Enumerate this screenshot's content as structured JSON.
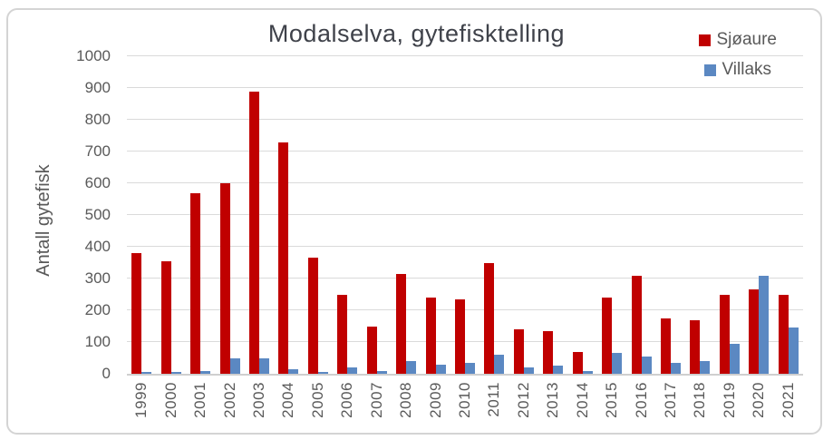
{
  "chart_data": {
    "type": "bar",
    "title": "Modalselva, gytefisktelling",
    "ylabel": "Antall gytefisk",
    "xlabel": "",
    "ylim": [
      0,
      1000
    ],
    "ytick_step": 100,
    "grid": true,
    "legend_position": "top-right",
    "categories": [
      "1999",
      "2000",
      "2001",
      "2002",
      "2003",
      "2004",
      "2005",
      "2006",
      "2007",
      "2008",
      "2009",
      "2010",
      "2011",
      "2012",
      "2013",
      "2014",
      "2015",
      "2016",
      "2017",
      "2018",
      "2019",
      "2020",
      "2021"
    ],
    "series": [
      {
        "name": "Sjøaure",
        "color": "#c00000",
        "values": [
          380,
          355,
          570,
          600,
          890,
          730,
          365,
          250,
          150,
          315,
          240,
          235,
          350,
          140,
          135,
          70,
          240,
          310,
          175,
          170,
          250,
          265,
          250
        ]
      },
      {
        "name": "Villaks",
        "color": "#5b88c2",
        "values": [
          5,
          5,
          10,
          50,
          50,
          15,
          5,
          20,
          10,
          40,
          30,
          35,
          60,
          20,
          25,
          10,
          65,
          55,
          35,
          40,
          95,
          310,
          145
        ]
      }
    ]
  }
}
